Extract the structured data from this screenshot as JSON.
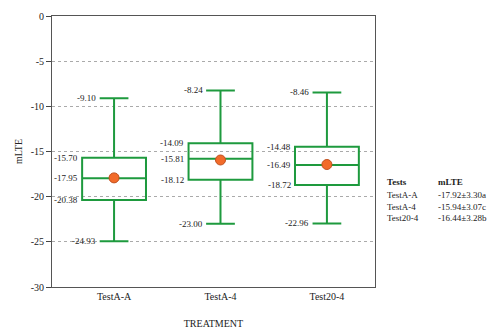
{
  "chart_data": {
    "type": "box",
    "x_label": "TREATMENT",
    "y_label": "mLTE",
    "ylim": [
      -30,
      0
    ],
    "yticks": [
      -30,
      -25,
      -20,
      -15,
      -10,
      -5,
      0
    ],
    "grid": true,
    "color": "#1e9a3e",
    "categories": [
      "TestA-A",
      "TestA-4",
      "Test20-4"
    ],
    "max": [
      -9.1,
      -8.24,
      -8.46
    ],
    "q3": [
      -15.7,
      -14.09,
      -14.48
    ],
    "median": [
      -17.95,
      -15.81,
      -16.49
    ],
    "q1": [
      -20.38,
      -18.12,
      -18.72
    ],
    "min": [
      -24.93,
      -23.0,
      -22.96
    ],
    "mean": [
      -17.92,
      -15.94,
      -16.44
    ],
    "value_labels": {
      "max": [
        "-9.10",
        "-8.24",
        "-8.46"
      ],
      "q3": [
        "-15.70",
        "-14.09",
        "-14.48"
      ],
      "median": [
        "-17.95",
        "-15.81",
        "-16.49"
      ],
      "q1": [
        "-20.38",
        "-18.12",
        "-18.72"
      ],
      "min": [
        "-24.93",
        "-23.00",
        "-22.96"
      ]
    },
    "table": {
      "header": [
        "Tests",
        "mLTE"
      ],
      "rows": [
        [
          "TestA-A",
          "-17.92±3.30a"
        ],
        [
          "TestA-4",
          "-15.94±3.07c"
        ],
        [
          "Test20-4",
          "-16.44±3.28b"
        ]
      ]
    }
  }
}
